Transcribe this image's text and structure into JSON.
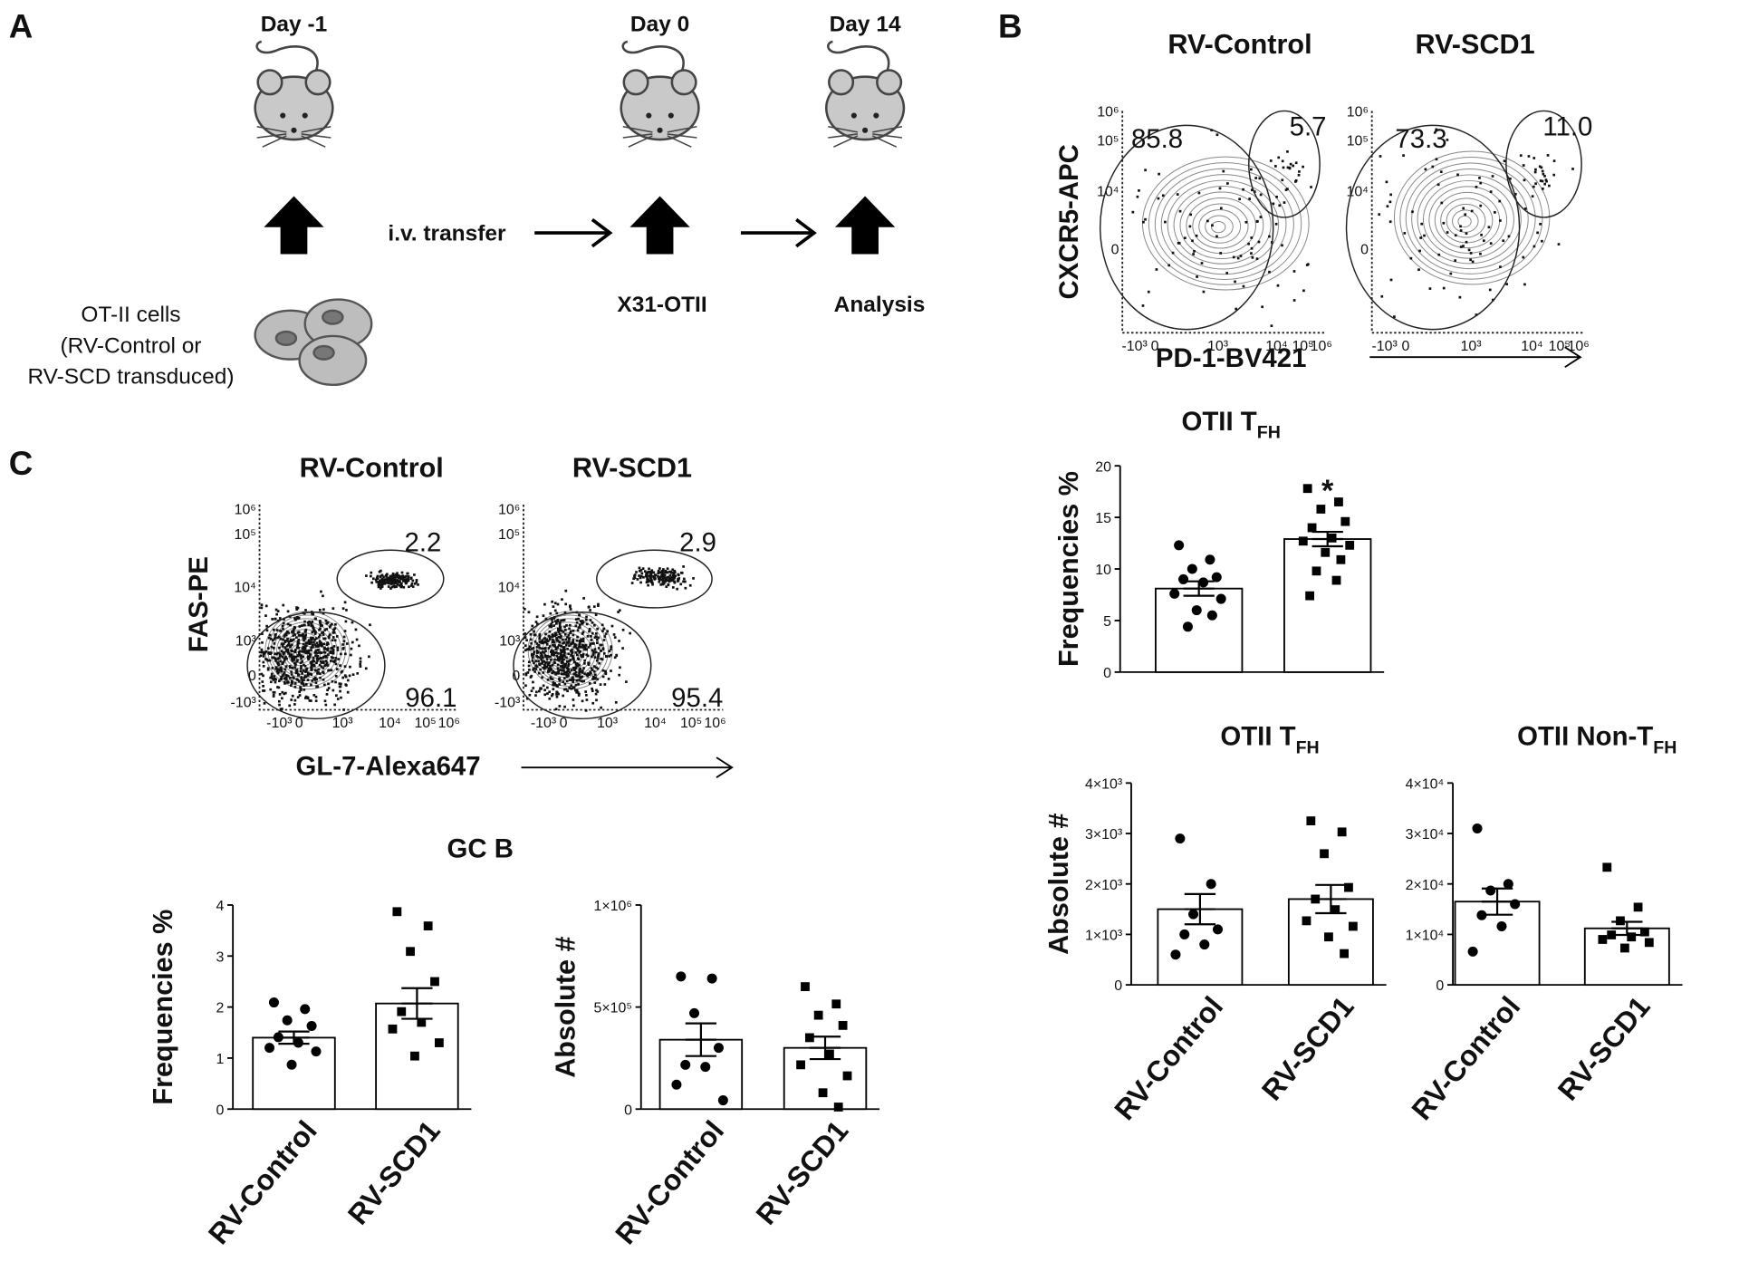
{
  "panel_labels": [
    "A",
    "B",
    "C"
  ],
  "schematic": {
    "days": [
      "Day -1",
      "Day 0",
      "Day 14"
    ],
    "transfer": "i.v. transfer",
    "steps": [
      "X31-OTII",
      "Analysis"
    ],
    "cells": [
      "OT-II cells",
      "(RV-Control or",
      "RV-SCD transduced)"
    ]
  },
  "flow_plots": [
    {
      "title": "RV-Control",
      "y_label": "CXCR5-APC",
      "x_label": "PD-1-BV421",
      "y_ticks": [
        "10⁶",
        "10⁵",
        "10⁴",
        "0"
      ],
      "x_ticks": [
        "-10³",
        "0",
        "10³",
        "10⁴",
        "10⁵",
        "10⁶"
      ],
      "gates": [
        "85.8",
        "5.7"
      ]
    },
    {
      "title": "RV-SCD1",
      "y_ticks": [
        "10⁶",
        "10⁵",
        "10⁴",
        "0"
      ],
      "x_ticks": [
        "-10³",
        "0",
        "10³",
        "10⁴",
        "10⁵",
        "10⁶"
      ],
      "gates": [
        "73.3",
        "11.0"
      ]
    },
    {
      "title": "RV-Control",
      "y_label": "FAS-PE",
      "x_label": "GL-7-Alexa647",
      "y_ticks": [
        "10⁶",
        "10⁵",
        "10⁴",
        "10³",
        "0",
        "-10³"
      ],
      "x_ticks": [
        "-10³",
        "0",
        "10³",
        "10⁴",
        "10⁵",
        "10⁶"
      ],
      "gates": [
        "2.2",
        "96.1"
      ]
    },
    {
      "title": "RV-SCD1",
      "y_ticks": [
        "10⁶",
        "10⁵",
        "10⁴",
        "10³",
        "0",
        "-10³"
      ],
      "x_ticks": [
        "-10³",
        "0",
        "10³",
        "10⁴",
        "10⁵",
        "10⁶"
      ],
      "gates": [
        "2.9",
        "95.4"
      ]
    }
  ],
  "chart_data": [
    {
      "type": "bar",
      "title": "OTII T",
      "title_sub": "FH",
      "y_label": "Frequencies %",
      "annotation": "*",
      "categories": [
        null,
        null
      ],
      "values": [
        8.1,
        12.9
      ],
      "errors": [
        0.7,
        0.7
      ],
      "points": [
        [
          12.3,
          10.9,
          10.0,
          9.2,
          9.0,
          8.7,
          7.6,
          7.1,
          6.0,
          5.5,
          4.4
        ],
        [
          17.8,
          16.5,
          15.8,
          14.6,
          14.0,
          13.0,
          12.7,
          12.3,
          11.6,
          10.9,
          9.8,
          8.9,
          7.4
        ]
      ],
      "markers": [
        "circle",
        "square"
      ],
      "color": "#ffffff",
      "ylim": [
        0,
        20
      ],
      "yticks": [
        0,
        5,
        10,
        15,
        20
      ]
    },
    {
      "type": "bar",
      "title": "OTII T",
      "title_sub": "FH",
      "y_label": "Absolute #",
      "categories": [
        "RV-Control",
        "RV-SCD1"
      ],
      "values": [
        1500,
        1700
      ],
      "errors": [
        300,
        280
      ],
      "points": [
        [
          2900,
          2000,
          1400,
          1100,
          1000,
          800,
          600
        ],
        [
          3250,
          3030,
          2600,
          1930,
          1700,
          1490,
          1270,
          1160,
          950,
          620
        ]
      ],
      "markers": [
        "circle",
        "square"
      ],
      "color": "#ffffff",
      "ylim": [
        0,
        4000
      ],
      "yticks": [
        0,
        {
          "value": 1000,
          "label": "1×10³"
        },
        {
          "value": 2000,
          "label": "2×10³"
        },
        {
          "value": 3000,
          "label": "3×10³"
        },
        {
          "value": 4000,
          "label": "4×10³"
        }
      ]
    },
    {
      "type": "bar",
      "title": "OTII Non-T",
      "title_sub": "FH",
      "categories": [
        "RV-Control",
        "RV-SCD1"
      ],
      "values": [
        16500,
        11200
      ],
      "errors": [
        2600,
        1300
      ],
      "points": [
        [
          31000,
          20000,
          18700,
          16000,
          13800,
          11600,
          6600
        ],
        [
          23300,
          15400,
          12700,
          10500,
          9900,
          9500,
          9000,
          8400,
          7300
        ]
      ],
      "markers": [
        "circle",
        "square"
      ],
      "color": "#ffffff",
      "ylim": [
        0,
        40000
      ],
      "yticks": [
        0,
        {
          "value": 10000,
          "label": "1×10⁴"
        },
        {
          "value": 20000,
          "label": "2×10⁴"
        },
        {
          "value": 30000,
          "label": "3×10⁴"
        },
        {
          "value": 40000,
          "label": "4×10⁴"
        }
      ]
    },
    {
      "type": "bar",
      "title": "GC B",
      "y_label": "Frequencies %",
      "categories": [
        "RV-Control",
        "RV-SCD1"
      ],
      "values": [
        1.4,
        2.07
      ],
      "errors": [
        0.12,
        0.3
      ],
      "points": [
        [
          2.09,
          1.96,
          1.74,
          1.63,
          1.41,
          1.3,
          1.2,
          1.13,
          0.87
        ],
        [
          3.87,
          3.59,
          3.09,
          2.5,
          1.91,
          1.7,
          1.57,
          1.3,
          1.04
        ]
      ],
      "markers": [
        "circle",
        "square"
      ],
      "color": "#ffffff",
      "ylim": [
        0,
        4
      ],
      "yticks": [
        0,
        1,
        2,
        3,
        4
      ]
    },
    {
      "type": "bar",
      "y_label": "Absolute #",
      "categories": [
        "RV-Control",
        "RV-SCD1"
      ],
      "values": [
        340000,
        300000
      ],
      "errors": [
        80000,
        55000
      ],
      "points": [
        [
          650000,
          640000,
          470000,
          300000,
          217000,
          207000,
          120000,
          43000
        ],
        [
          600000,
          515000,
          460000,
          410000,
          350000,
          270000,
          217000,
          163000,
          80000,
          10000
        ]
      ],
      "markers": [
        "circle",
        "square"
      ],
      "color": "#ffffff",
      "ylim": [
        0,
        1000000
      ],
      "yticks": [
        0,
        {
          "value": 500000,
          "label": "5×10⁵"
        },
        {
          "value": 1000000,
          "label": "1×10⁶"
        }
      ]
    }
  ]
}
